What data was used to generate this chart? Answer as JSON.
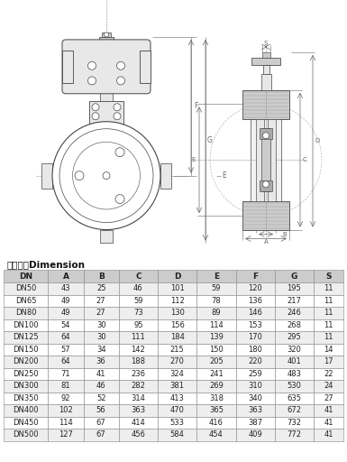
{
  "title": "外形尺寸Dimension",
  "headers": [
    "DN",
    "A",
    "B",
    "C",
    "D",
    "E",
    "F",
    "G",
    "S"
  ],
  "rows": [
    [
      "DN50",
      43,
      25,
      46,
      101,
      59,
      120,
      195,
      11
    ],
    [
      "DN65",
      49,
      27,
      59,
      112,
      78,
      136,
      217,
      11
    ],
    [
      "DN80",
      49,
      27,
      73,
      130,
      89,
      146,
      246,
      11
    ],
    [
      "DN100",
      54,
      30,
      95,
      156,
      114,
      153,
      268,
      11
    ],
    [
      "DN125",
      64,
      30,
      111,
      184,
      139,
      170,
      295,
      11
    ],
    [
      "DN150",
      57,
      34,
      142,
      215,
      150,
      180,
      320,
      14
    ],
    [
      "DN200",
      64,
      36,
      188,
      270,
      205,
      220,
      401,
      17
    ],
    [
      "DN250",
      71,
      41,
      236,
      324,
      241,
      259,
      483,
      22
    ],
    [
      "DN300",
      81,
      46,
      282,
      381,
      269,
      310,
      530,
      24
    ],
    [
      "DN350",
      92,
      52,
      314,
      413,
      318,
      340,
      635,
      27
    ],
    [
      "DN400",
      102,
      56,
      363,
      470,
      365,
      363,
      672,
      41
    ],
    [
      "DN450",
      114,
      67,
      414,
      533,
      416,
      387,
      732,
      41
    ],
    [
      "DN500",
      127,
      67,
      456,
      584,
      454,
      409,
      772,
      41
    ]
  ],
  "bg_color": "#ffffff",
  "header_bg": "#cccccc",
  "row_bg_odd": "#eeeeee",
  "row_bg_even": "#ffffff",
  "border_color": "#888888",
  "text_color": "#222222",
  "title_color": "#111111",
  "draw_line_color": "#444444",
  "dim_line_color": "#666666",
  "hatch_color": "#999999",
  "fill_light": "#e8e8e8",
  "fill_mid": "#cccccc",
  "fill_dark": "#aaaaaa"
}
